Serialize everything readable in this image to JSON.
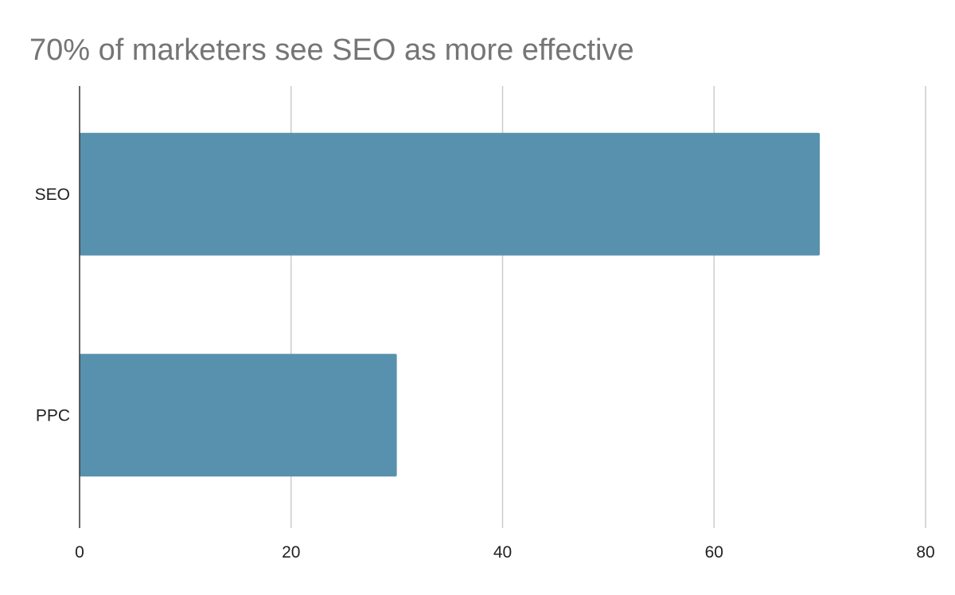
{
  "chart_data": {
    "type": "bar",
    "orientation": "horizontal",
    "title": "70% of marketers see SEO as more effective",
    "categories": [
      "SEO",
      "PPC"
    ],
    "values": [
      70,
      30
    ],
    "xlabel": "",
    "ylabel": "",
    "xlim": [
      0,
      80
    ],
    "x_ticks": [
      0,
      20,
      40,
      60,
      80
    ],
    "grid": "vertical",
    "legend": "none",
    "bar_color": "#5891ad",
    "grid_color": "#cccccc",
    "axis_color": "#333333"
  }
}
